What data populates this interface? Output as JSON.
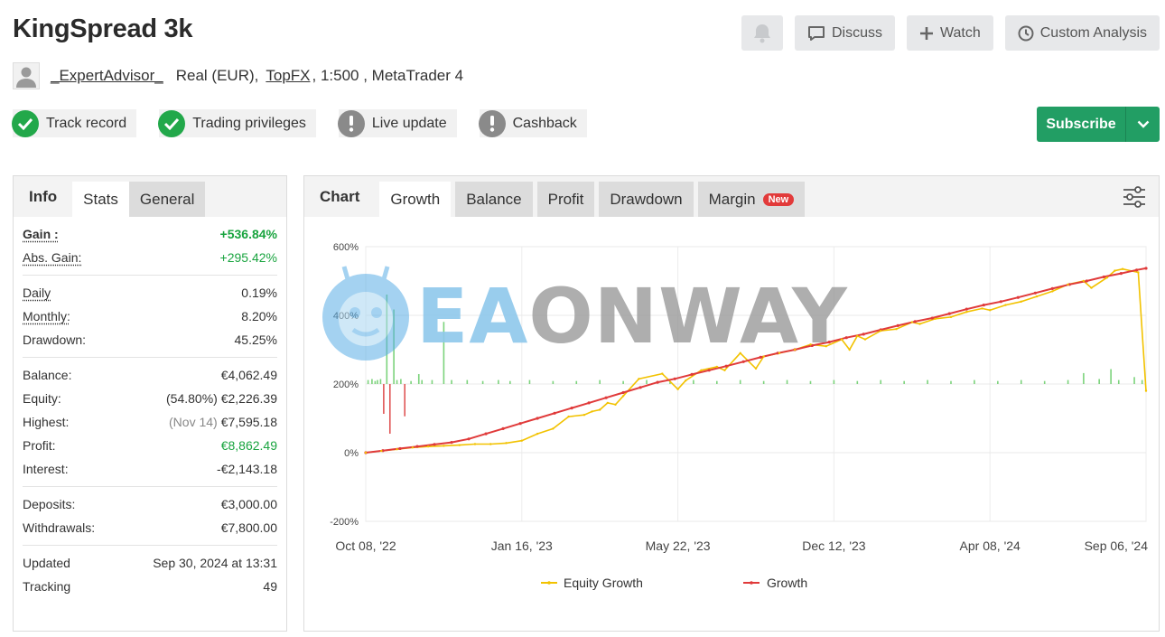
{
  "page": {
    "title": "KingSpread 3k"
  },
  "header_actions": {
    "bell_icon": "bell-icon",
    "discuss_label": "Discuss",
    "watch_label": "Watch",
    "custom_analysis_label": "Custom Analysis"
  },
  "account": {
    "user": "_ExpertAdvisor_",
    "type_prefix": "Real (EUR),",
    "broker": "TopFX",
    "details": ", 1:500 , MetaTrader 4"
  },
  "badges": [
    {
      "label": "Track record",
      "status": "ok"
    },
    {
      "label": "Trading privileges",
      "status": "ok"
    },
    {
      "label": "Live update",
      "status": "warn"
    },
    {
      "label": "Cashback",
      "status": "warn"
    }
  ],
  "subscribe": {
    "label": "Subscribe"
  },
  "info_tabs": {
    "info": "Info",
    "stats": "Stats",
    "general": "General"
  },
  "stats": {
    "gain_label": "Gain :",
    "gain_value": "+536.84%",
    "abs_gain_label": "Abs. Gain:",
    "abs_gain_value": "+295.42%",
    "daily_label": "Daily",
    "daily_value": "0.19%",
    "monthly_label": "Monthly:",
    "monthly_value": "8.20%",
    "drawdown_label": "Drawdown:",
    "drawdown_value": "45.25%",
    "balance_label": "Balance:",
    "balance_value": "€4,062.49",
    "equity_label": "Equity:",
    "equity_pct": "(54.80%)",
    "equity_value": "€2,226.39",
    "highest_label": "Highest:",
    "highest_date": "(Nov 14)",
    "highest_value": "€7,595.18",
    "profit_label": "Profit:",
    "profit_value": "€8,862.49",
    "interest_label": "Interest:",
    "interest_value": "-€2,143.18",
    "deposits_label": "Deposits:",
    "deposits_value": "€3,000.00",
    "withdrawals_label": "Withdrawals:",
    "withdrawals_value": "€7,800.00",
    "updated_label": "Updated",
    "updated_value": "Sep 30, 2024 at 13:31",
    "tracking_label": "Tracking",
    "tracking_value": "49"
  },
  "chart_tabs": {
    "chart": "Chart",
    "growth": "Growth",
    "balance": "Balance",
    "profit": "Profit",
    "drawdown": "Drawdown",
    "margin": "Margin",
    "new_badge": "New"
  },
  "watermark": {
    "part1": "EA",
    "part2": "ONWAY"
  },
  "chart_data": {
    "type": "line",
    "x_tick_labels": [
      "Oct 08, '22",
      "Jan 16, '23",
      "May 22, '23",
      "Dec 12, '23",
      "Apr 08, '24",
      "Sep 06, '24"
    ],
    "y_tick_labels": [
      "600%",
      "400%",
      "200%",
      "0%",
      "-200%"
    ],
    "ylim": [
      -200,
      600
    ],
    "grid": true,
    "legend_position": "bottom",
    "series": [
      {
        "name": "Equity Growth",
        "color": "#f2c200",
        "values": [
          0,
          5,
          10,
          15,
          18,
          20,
          22,
          25,
          25,
          28,
          35,
          55,
          70,
          105,
          110,
          120,
          125,
          145,
          140,
          165,
          215,
          230,
          185,
          210,
          240,
          250,
          240,
          290,
          245,
          280,
          290,
          300,
          315,
          310,
          330,
          300,
          340,
          330,
          355,
          360,
          380,
          375,
          390,
          395,
          410,
          420,
          415,
          430,
          440,
          455,
          470,
          490,
          500,
          480,
          510,
          530,
          535,
          525,
          180
        ],
        "x_fraction": [
          0,
          0.02,
          0.04,
          0.06,
          0.08,
          0.1,
          0.12,
          0.14,
          0.16,
          0.18,
          0.2,
          0.22,
          0.24,
          0.26,
          0.28,
          0.29,
          0.3,
          0.31,
          0.32,
          0.33,
          0.35,
          0.38,
          0.4,
          0.41,
          0.43,
          0.45,
          0.46,
          0.48,
          0.5,
          0.51,
          0.53,
          0.55,
          0.57,
          0.59,
          0.61,
          0.62,
          0.63,
          0.64,
          0.66,
          0.68,
          0.7,
          0.71,
          0.73,
          0.75,
          0.77,
          0.79,
          0.8,
          0.82,
          0.84,
          0.86,
          0.88,
          0.9,
          0.92,
          0.93,
          0.95,
          0.96,
          0.97,
          0.99,
          1
        ]
      },
      {
        "name": "Growth",
        "color": "#e03a3a",
        "values": [
          0,
          6,
          12,
          18,
          24,
          30,
          40,
          55,
          70,
          85,
          100,
          115,
          130,
          145,
          160,
          175,
          190,
          205,
          215,
          228,
          240,
          252,
          265,
          278,
          290,
          300,
          312,
          322,
          335,
          345,
          358,
          370,
          382,
          392,
          405,
          418,
          430,
          440,
          452,
          465,
          478,
          490,
          500,
          512,
          522,
          532,
          537
        ],
        "x_fraction": [
          0,
          0.022,
          0.044,
          0.066,
          0.088,
          0.11,
          0.132,
          0.154,
          0.176,
          0.198,
          0.22,
          0.242,
          0.264,
          0.286,
          0.308,
          0.33,
          0.352,
          0.374,
          0.396,
          0.418,
          0.44,
          0.462,
          0.484,
          0.506,
          0.528,
          0.55,
          0.572,
          0.594,
          0.616,
          0.638,
          0.66,
          0.682,
          0.704,
          0.726,
          0.748,
          0.77,
          0.792,
          0.814,
          0.836,
          0.858,
          0.88,
          0.902,
          0.924,
          0.946,
          0.968,
          0.988,
          1
        ]
      }
    ],
    "volume_bars": {
      "x_fraction": [
        0.003,
        0.008,
        0.012,
        0.015,
        0.019,
        0.023,
        0.027,
        0.031,
        0.036,
        0.04,
        0.045,
        0.05,
        0.058,
        0.068,
        0.072,
        0.085,
        0.1,
        0.11,
        0.13,
        0.15,
        0.17,
        0.185,
        0.21,
        0.24,
        0.27,
        0.3,
        0.33,
        0.36,
        0.39,
        0.42,
        0.45,
        0.48,
        0.51,
        0.54,
        0.57,
        0.6,
        0.63,
        0.66,
        0.69,
        0.72,
        0.75,
        0.78,
        0.81,
        0.84,
        0.87,
        0.9,
        0.92,
        0.94,
        0.955,
        0.965,
        0.985,
        0.995
      ],
      "values": [
        8,
        10,
        6,
        8,
        10,
        -60,
        180,
        -100,
        150,
        8,
        10,
        -65,
        6,
        20,
        8,
        8,
        125,
        8,
        8,
        6,
        8,
        6,
        8,
        6,
        6,
        8,
        6,
        8,
        6,
        8,
        6,
        8,
        6,
        8,
        6,
        8,
        6,
        8,
        6,
        8,
        6,
        8,
        6,
        8,
        6,
        8,
        22,
        10,
        30,
        8,
        14,
        8
      ]
    }
  },
  "legend": {
    "equity": "Equity Growth",
    "growth": "Growth"
  }
}
